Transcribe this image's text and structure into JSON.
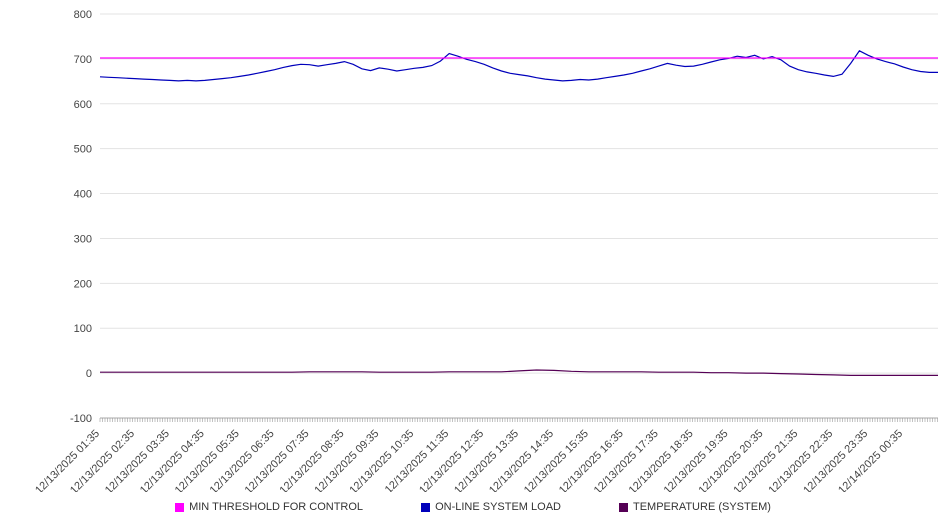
{
  "chart_data": {
    "type": "line",
    "title": "",
    "xlabel": "",
    "ylabel": "",
    "ylim": [
      -100,
      800
    ],
    "y_ticks": [
      -100,
      0,
      100,
      200,
      300,
      400,
      500,
      600,
      700,
      800
    ],
    "grid": true,
    "legend_position": "bottom",
    "x_labels": [
      "12/13/2025 01:35",
      "12/13/2025 02:35",
      "12/13/2025 03:35",
      "12/13/2025 04:35",
      "12/13/2025 05:35",
      "12/13/2025 06:35",
      "12/13/2025 07:35",
      "12/13/2025 08:35",
      "12/13/2025 09:35",
      "12/13/2025 10:35",
      "12/13/2025 11:35",
      "12/13/2025 12:35",
      "12/13/2025 13:35",
      "12/13/2025 14:35",
      "12/13/2025 15:35",
      "12/13/2025 16:35",
      "12/13/2025 17:35",
      "12/13/2025 18:35",
      "12/13/2025 19:35",
      "12/13/2025 20:35",
      "12/13/2025 21:35",
      "12/13/2025 22:35",
      "12/13/2025 23:35",
      "12/14/2025 00:35"
    ],
    "series": [
      {
        "name": "MIN THRESHOLD FOR CONTROL",
        "color": "#ff00ff",
        "values": [
          702,
          702
        ]
      },
      {
        "name": "ON-LINE SYSTEM LOAD",
        "color": "#0000bb",
        "values": [
          660,
          659,
          658,
          657,
          656,
          655,
          654,
          653,
          652,
          651,
          652,
          651,
          652,
          654,
          656,
          658,
          661,
          664,
          668,
          672,
          676,
          681,
          685,
          688,
          687,
          684,
          687,
          690,
          694,
          688,
          678,
          674,
          680,
          677,
          673,
          676,
          679,
          681,
          685,
          695,
          712,
          706,
          699,
          694,
          688,
          680,
          673,
          668,
          665,
          662,
          658,
          655,
          653,
          651,
          652,
          654,
          653,
          655,
          658,
          661,
          664,
          668,
          673,
          678,
          684,
          690,
          686,
          683,
          684,
          688,
          693,
          698,
          701,
          706,
          703,
          708,
          700,
          705,
          698,
          684,
          676,
          671,
          668,
          664,
          661,
          666,
          690,
          718,
          708,
          700,
          694,
          689,
          682,
          676,
          672,
          670,
          670
        ]
      },
      {
        "name": "TEMPERATURE (SYSTEM)",
        "color": "#550055",
        "values": [
          2,
          2,
          2,
          2,
          2,
          2,
          2,
          2,
          2,
          2,
          2,
          2,
          3,
          3,
          3,
          3,
          2,
          2,
          2,
          2,
          3,
          3,
          3,
          3,
          5,
          7,
          6,
          4,
          3,
          3,
          3,
          3,
          2,
          2,
          2,
          1,
          1,
          0,
          0,
          -1,
          -2,
          -3,
          -4,
          -5,
          -5,
          -5,
          -5,
          -5,
          -5
        ]
      }
    ]
  },
  "legend": {
    "item1": "MIN THRESHOLD FOR CONTROL",
    "item2": "ON-LINE SYSTEM LOAD",
    "item3": "TEMPERATURE (SYSTEM)"
  }
}
